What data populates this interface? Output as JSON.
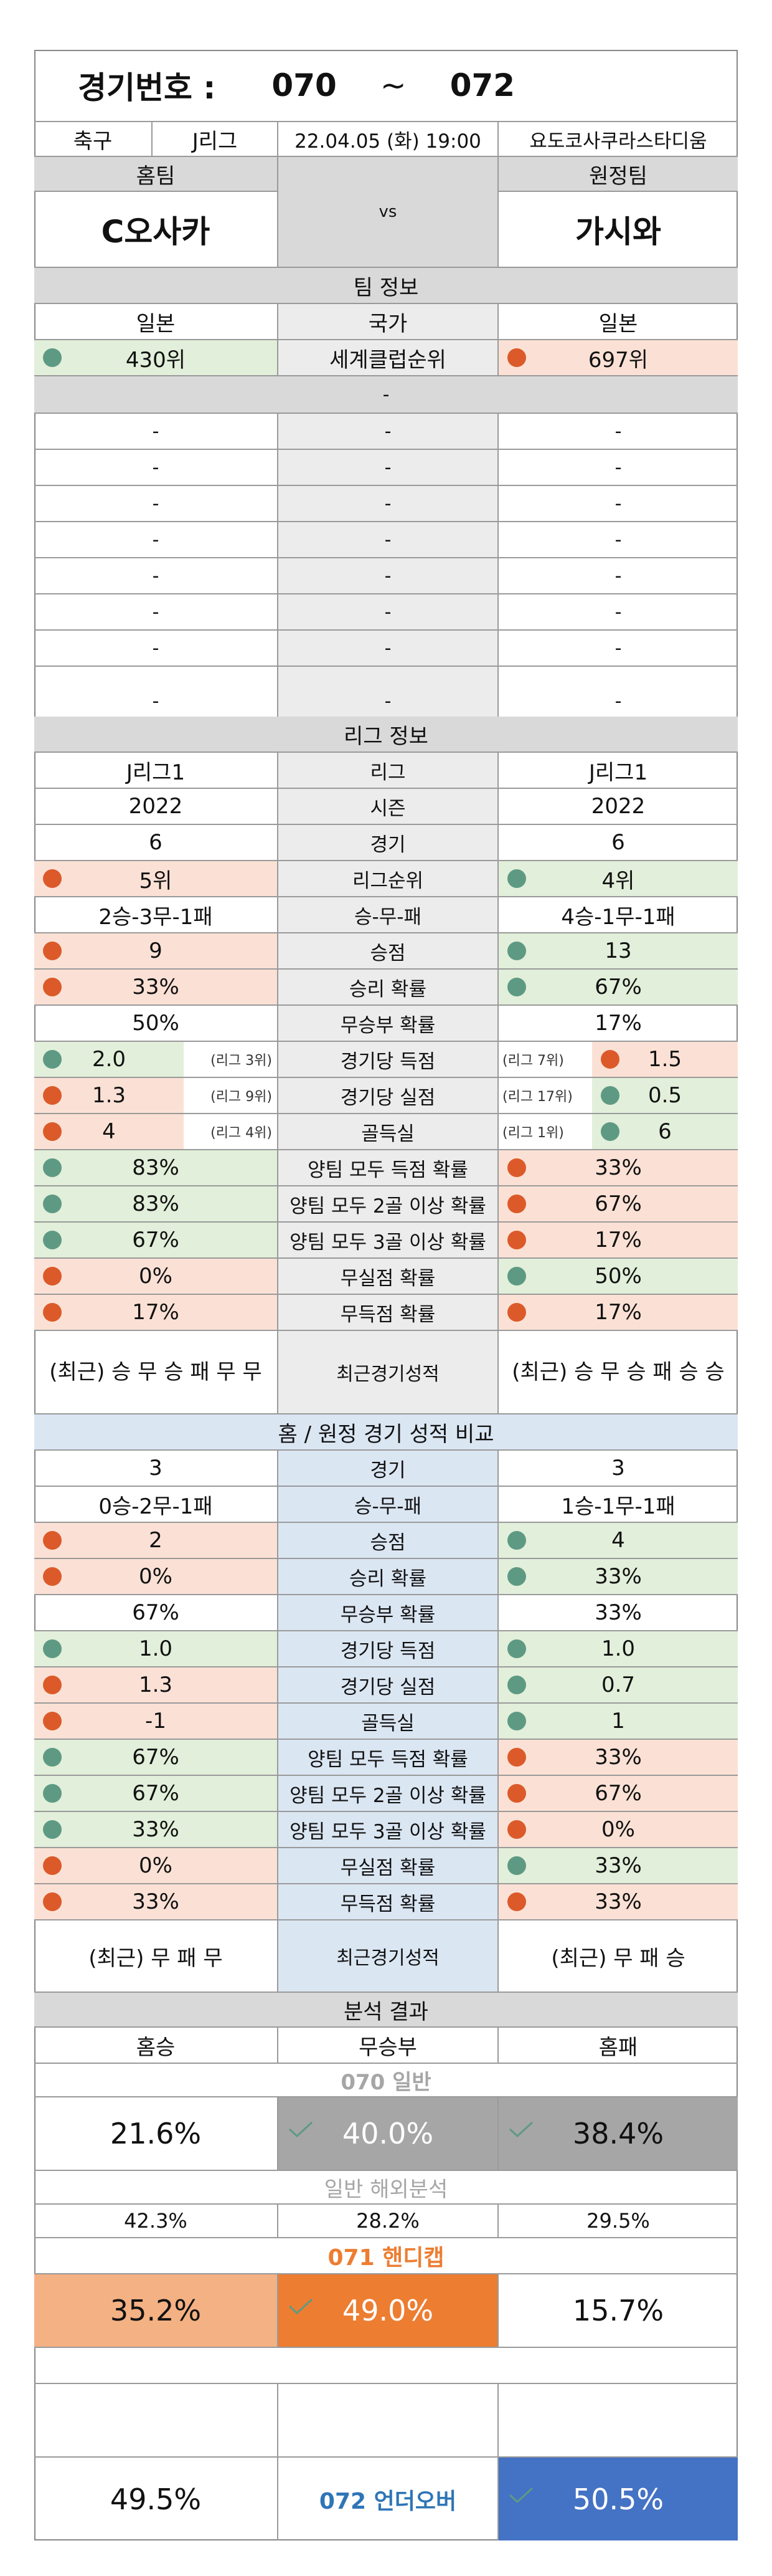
{
  "header": {
    "label": "경기번호 :",
    "from": "070",
    "tilde": "~",
    "to": "072"
  },
  "match": {
    "sport": "축구",
    "league": "J리그",
    "datetime": "22.04.05 (화) 19:00",
    "venue": "요도코사쿠라스타디움"
  },
  "teams": {
    "home_label": "홈팀",
    "away_label": "원정팀",
    "vs": "vs",
    "home": "C오사카",
    "away": "가시와"
  },
  "team_info": {
    "title": "팀 정보",
    "home_country": "일본",
    "country_label": "국가",
    "away_country": "일본",
    "home_rank": "430위",
    "rank_label": "세계클럽순위",
    "away_rank": "697위",
    "dash": "-"
  },
  "league_info": {
    "title": "리그 정보",
    "rows": [
      {
        "home": "J리그1",
        "label": "리그",
        "away": "J리그1"
      },
      {
        "home": "2022",
        "label": "시즌",
        "away": "2022"
      },
      {
        "home": "6",
        "label": "경기",
        "away": "6"
      },
      {
        "home": "5위",
        "label": "리그순위",
        "away": "4위"
      },
      {
        "home": "2승-3무-1패",
        "label": "승-무-패",
        "away": "4승-1무-1패"
      },
      {
        "home": "9",
        "label": "승점",
        "away": "13"
      },
      {
        "home": "33%",
        "label": "승리 확률",
        "away": "67%"
      },
      {
        "home": "50%",
        "label": "무승부 확률",
        "away": "17%"
      },
      {
        "home": "2.0",
        "home_note": "(리그 3위)",
        "label": "경기당 득점",
        "away_note": "(리그 7위)",
        "away": "1.5"
      },
      {
        "home": "1.3",
        "home_note": "(리그 9위)",
        "label": "경기당 실점",
        "away_note": "(리그 17위)",
        "away": "0.5"
      },
      {
        "home": "4",
        "home_note": "(리그 4위)",
        "label": "골득실",
        "away_note": "(리그 1위)",
        "away": "6"
      },
      {
        "home": "83%",
        "label": "양팀 모두 득점 확률",
        "away": "33%"
      },
      {
        "home": "83%",
        "label": "양팀 모두 2골 이상 확률",
        "away": "67%"
      },
      {
        "home": "67%",
        "label": "양팀 모두 3골 이상 확률",
        "away": "17%"
      },
      {
        "home": "0%",
        "label": "무실점 확률",
        "away": "50%"
      },
      {
        "home": "17%",
        "label": "무득점 확률",
        "away": "17%"
      }
    ],
    "recent_home": "(최근) 승 무 승 패 무 무",
    "recent_label": "최근경기성적",
    "recent_away": "(최근) 승 무 승 패 승 승"
  },
  "compare": {
    "title": "홈 / 원정 경기 성적 비교",
    "rows": [
      {
        "home": "3",
        "label": "경기",
        "away": "3"
      },
      {
        "home": "0승-2무-1패",
        "label": "승-무-패",
        "away": "1승-1무-1패"
      },
      {
        "home": "2",
        "label": "승점",
        "away": "4"
      },
      {
        "home": "0%",
        "label": "승리 확률",
        "away": "33%"
      },
      {
        "home": "67%",
        "label": "무승부 확률",
        "away": "33%"
      },
      {
        "home": "1.0",
        "label": "경기당 득점",
        "away": "1.0"
      },
      {
        "home": "1.3",
        "label": "경기당 실점",
        "away": "0.7"
      },
      {
        "home": "-1",
        "label": "골득실",
        "away": "1"
      },
      {
        "home": "67%",
        "label": "양팀 모두 득점 확률",
        "away": "33%"
      },
      {
        "home": "67%",
        "label": "양팀 모두 2골 이상 확률",
        "away": "67%"
      },
      {
        "home": "33%",
        "label": "양팀 모두 3골 이상 확률",
        "away": "0%"
      },
      {
        "home": "0%",
        "label": "무실점 확률",
        "away": "33%"
      },
      {
        "home": "33%",
        "label": "무득점 확률",
        "away": "33%"
      }
    ],
    "recent_home": "(최근) 무 패 무",
    "recent_label": "최근경기성적",
    "recent_away": "(최근) 무 패 승"
  },
  "analysis": {
    "title": "분석 결과",
    "col_home_win": "홈승",
    "col_draw": "무승부",
    "col_home_loss": "홈패",
    "game70_title": "070 일반",
    "game70": {
      "home": "21.6%",
      "draw": "40.0%",
      "away": "38.4%"
    },
    "overseas_title": "일반 해외분석",
    "overseas": {
      "home": "42.3%",
      "draw": "28.2%",
      "away": "29.5%"
    },
    "game71_title": "071 핸디캡",
    "game71": {
      "home": "35.2%",
      "draw": "49.0%",
      "away": "15.7%"
    },
    "game72_title": "072 언더오버",
    "game72": {
      "under": "49.5%",
      "over": "50.5%"
    }
  },
  "colors": {
    "red_dot": "#dc5a2a",
    "green_dot": "#5e9a83",
    "pink_bg": "#fbe1d5",
    "green_bg": "#e2efda",
    "orange": "#ed7d31",
    "light_orange": "#f4b183",
    "blue": "#4472c4",
    "gray_pick": "#a6a6a6",
    "link_blue": "#2e75b6"
  }
}
